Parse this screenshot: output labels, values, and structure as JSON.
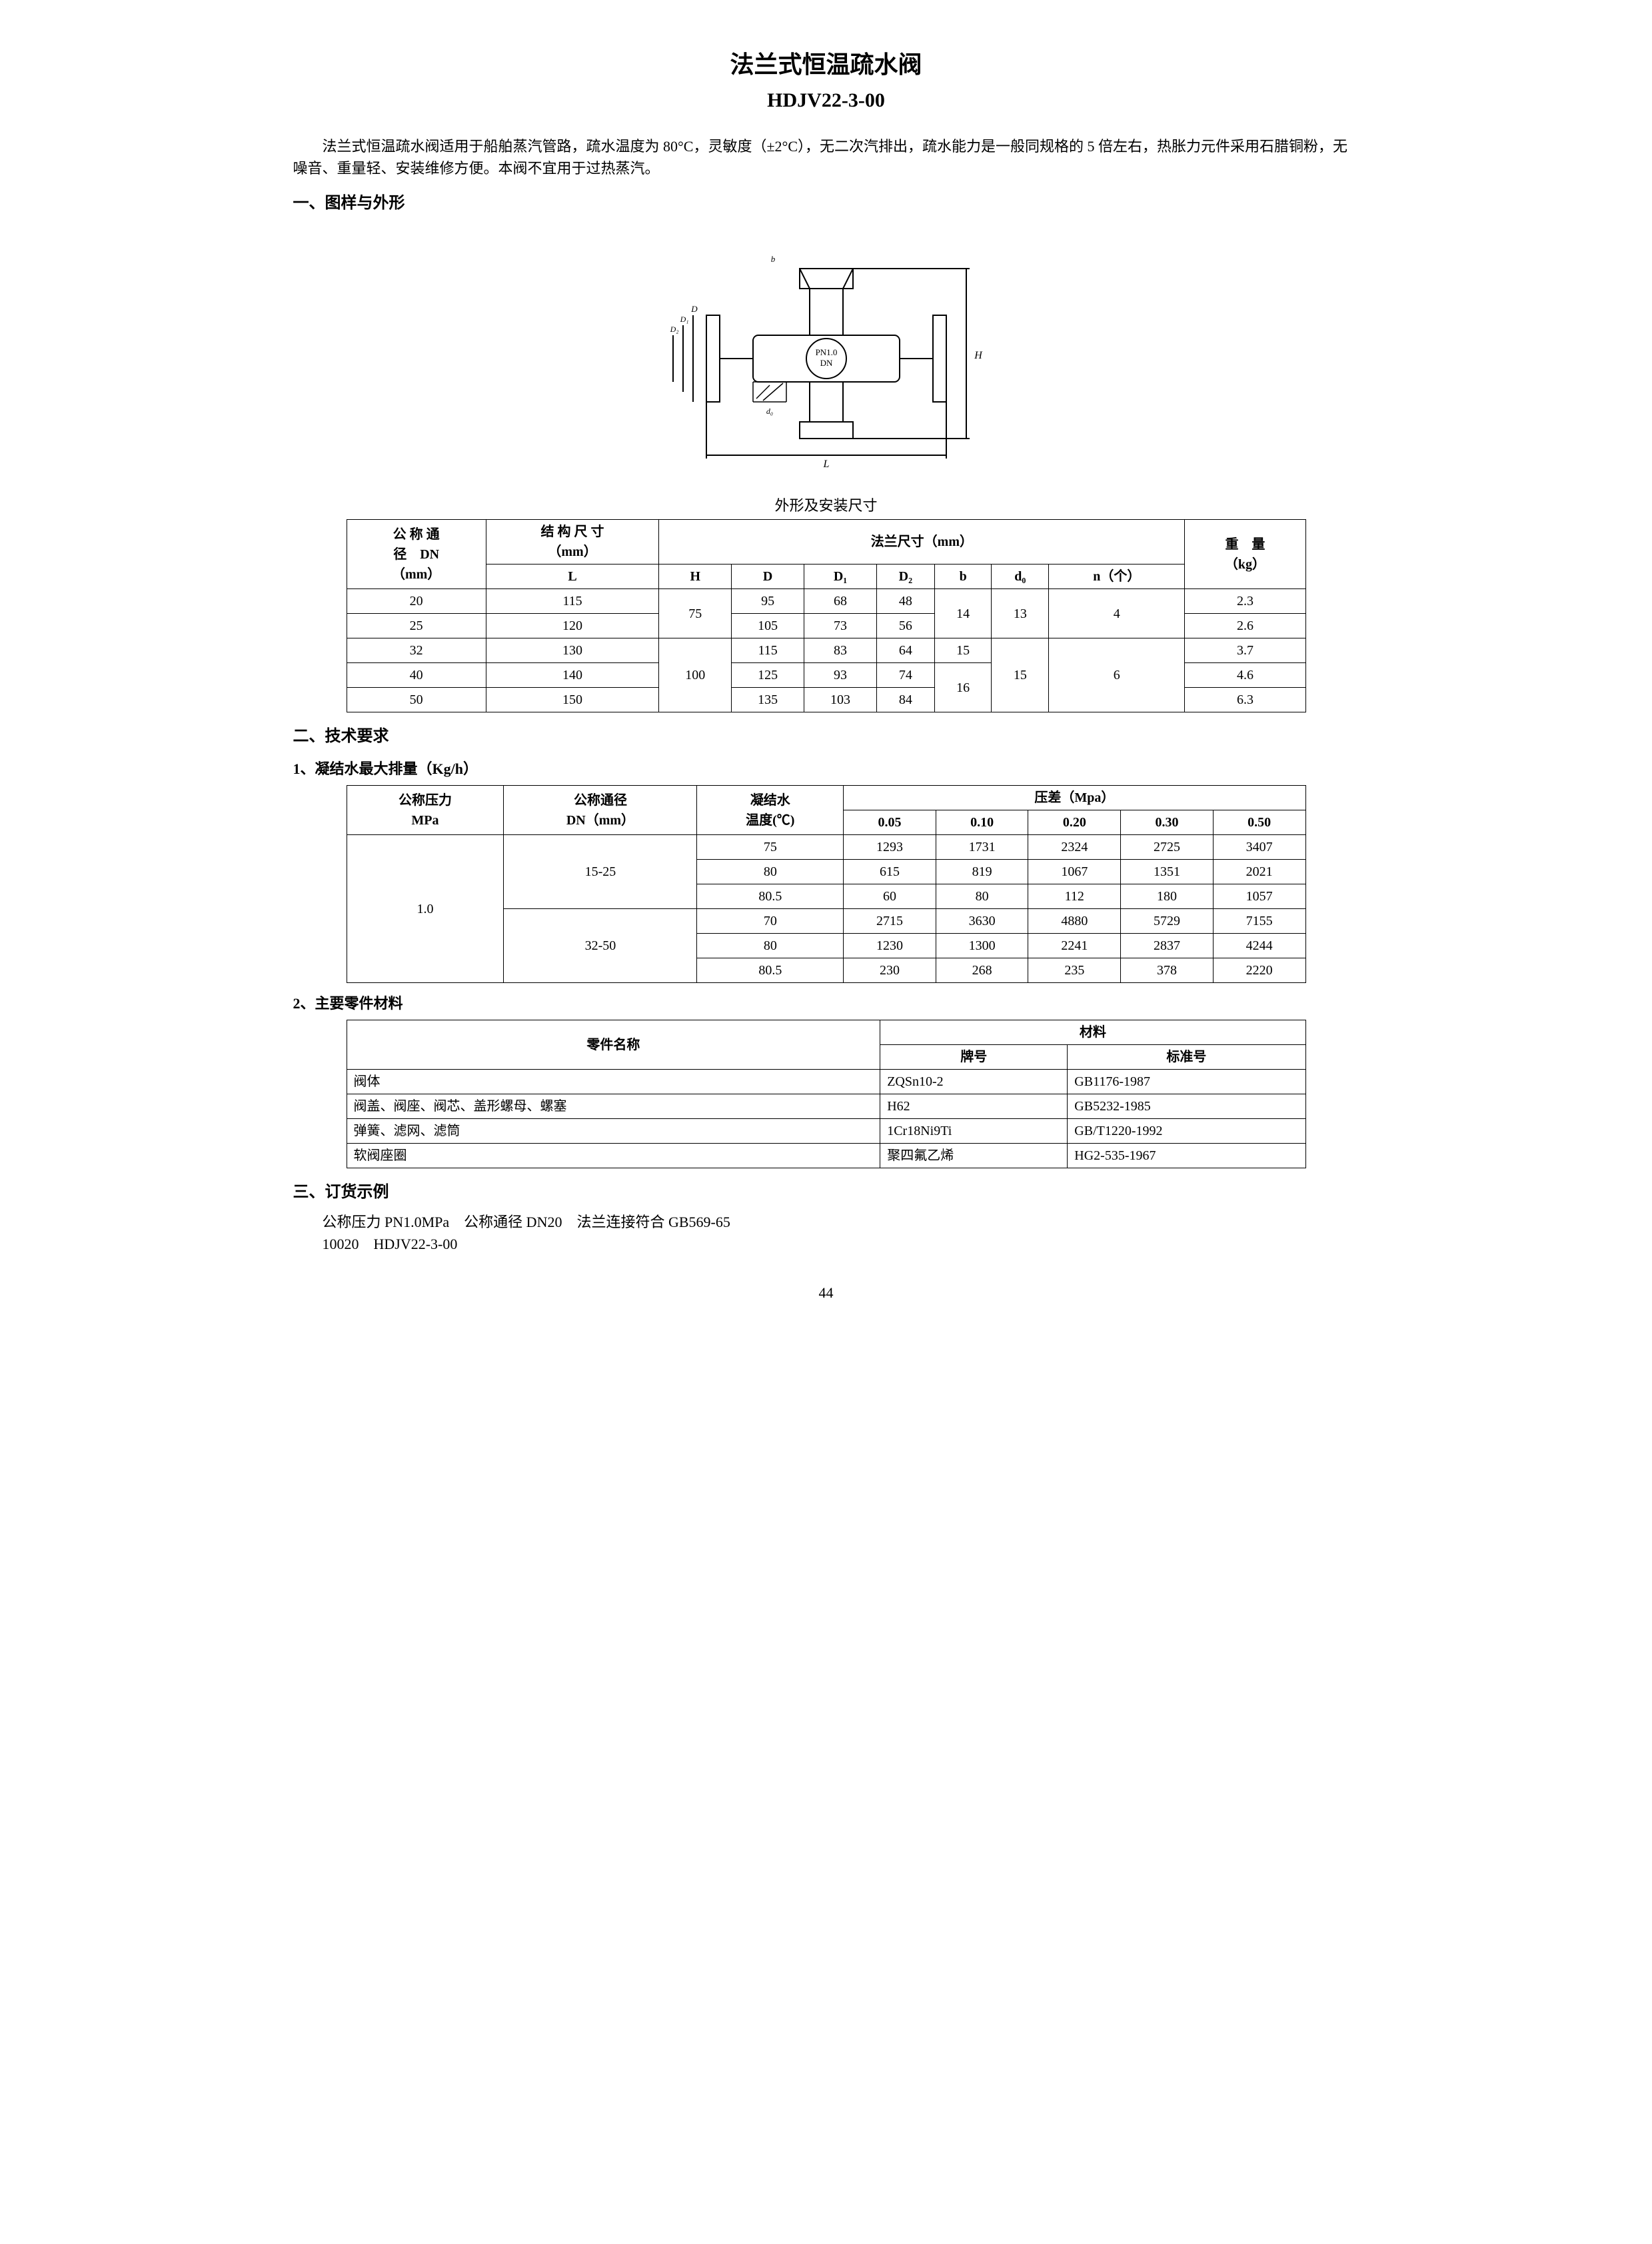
{
  "title": "法兰式恒温疏水阀",
  "model": "HDJV22-3-00",
  "intro": "法兰式恒温疏水阀适用于船舶蒸汽管路，疏水温度为 80°C，灵敏度（±2°C），无二次汽排出，疏水能力是一般同规格的 5 倍左右，热胀力元件采用石腊铜粉，无噪音、重量轻、安装维修方便。本阀不宜用于过热蒸汽。",
  "s1_head": "一、图样与外形",
  "diagram_labels": {
    "pn": "PN1.0",
    "dn": "DN",
    "L": "L",
    "H": "H",
    "D": "D",
    "D1": "D₁",
    "D2": "D₂",
    "b": "b",
    "d0": "d₀"
  },
  "size_table": {
    "caption": "外形及安装尺寸",
    "headers": {
      "dn": "公 称 通\n径　DN\n（mm）",
      "struct": "结 构 尺 寸\n（mm）",
      "flange": "法兰尺寸（mm）",
      "weight": "重　量\n（kg）",
      "L": "L",
      "H": "H",
      "D": "D",
      "D1": "D₁",
      "D2": "D₂",
      "b": "b",
      "d0": "d₀",
      "n": "n（个）"
    },
    "rows": [
      {
        "dn": "20",
        "L": "115",
        "H": "75",
        "D": "95",
        "D1": "68",
        "D2": "48",
        "b": "14",
        "d0": "13",
        "n": "4",
        "w": "2.3"
      },
      {
        "dn": "25",
        "L": "120",
        "H": "75",
        "D": "105",
        "D1": "73",
        "D2": "56",
        "b": "14",
        "d0": "13",
        "n": "4",
        "w": "2.6"
      },
      {
        "dn": "32",
        "L": "130",
        "H": "100",
        "D": "115",
        "D1": "83",
        "D2": "64",
        "b": "15",
        "d0": "15",
        "n": "6",
        "w": "3.7"
      },
      {
        "dn": "40",
        "L": "140",
        "H": "100",
        "D": "125",
        "D1": "93",
        "D2": "74",
        "b": "16",
        "d0": "15",
        "n": "6",
        "w": "4.6"
      },
      {
        "dn": "50",
        "L": "150",
        "H": "100",
        "D": "135",
        "D1": "103",
        "D2": "84",
        "b": "16",
        "d0": "15",
        "n": "6",
        "w": "6.3"
      }
    ]
  },
  "s2_head": "二、技术要求",
  "s2_1_head": "1、凝结水最大排量（Kg/h）",
  "disp_table": {
    "headers": {
      "pn": "公称压力\nMPa",
      "dn": "公称通径\nDN（mm）",
      "temp": "凝结水\n温度(℃)",
      "dp": "压差（Mpa）",
      "c1": "0.05",
      "c2": "0.10",
      "c3": "0.20",
      "c4": "0.30",
      "c5": "0.50"
    },
    "pn_val": "1.0",
    "groups": [
      {
        "dn": "15-25",
        "rows": [
          {
            "t": "75",
            "v": [
              "1293",
              "1731",
              "2324",
              "2725",
              "3407"
            ]
          },
          {
            "t": "80",
            "v": [
              "615",
              "819",
              "1067",
              "1351",
              "2021"
            ]
          },
          {
            "t": "80.5",
            "v": [
              "60",
              "80",
              "112",
              "180",
              "1057"
            ]
          }
        ]
      },
      {
        "dn": "32-50",
        "rows": [
          {
            "t": "70",
            "v": [
              "2715",
              "3630",
              "4880",
              "5729",
              "7155"
            ]
          },
          {
            "t": "80",
            "v": [
              "1230",
              "1300",
              "2241",
              "2837",
              "4244"
            ]
          },
          {
            "t": "80.5",
            "v": [
              "230",
              "268",
              "235",
              "378",
              "2220"
            ]
          }
        ]
      }
    ]
  },
  "s2_2_head": "2、主要零件材料",
  "mat_table": {
    "headers": {
      "part": "零件名称",
      "mat": "材料",
      "grade": "牌号",
      "std": "标准号"
    },
    "rows": [
      {
        "p": "阀体",
        "g": "ZQSn10-2",
        "s": "GB1176-1987"
      },
      {
        "p": "阀盖、阀座、阀芯、盖形螺母、螺塞",
        "g": "H62",
        "s": "GB5232-1985"
      },
      {
        "p": "弹簧、滤网、滤筒",
        "g": "1Cr18Ni9Ti",
        "s": "GB/T1220-1992"
      },
      {
        "p": "软阀座圈",
        "g": "聚四氟乙烯",
        "s": "HG2-535-1967"
      }
    ]
  },
  "s3_head": "三、订货示例",
  "order_line1": "公称压力 PN1.0MPa　公称通径 DN20　法兰连接符合 GB569-65",
  "order_line2": "10020　HDJV22-3-00",
  "page_num": "44"
}
